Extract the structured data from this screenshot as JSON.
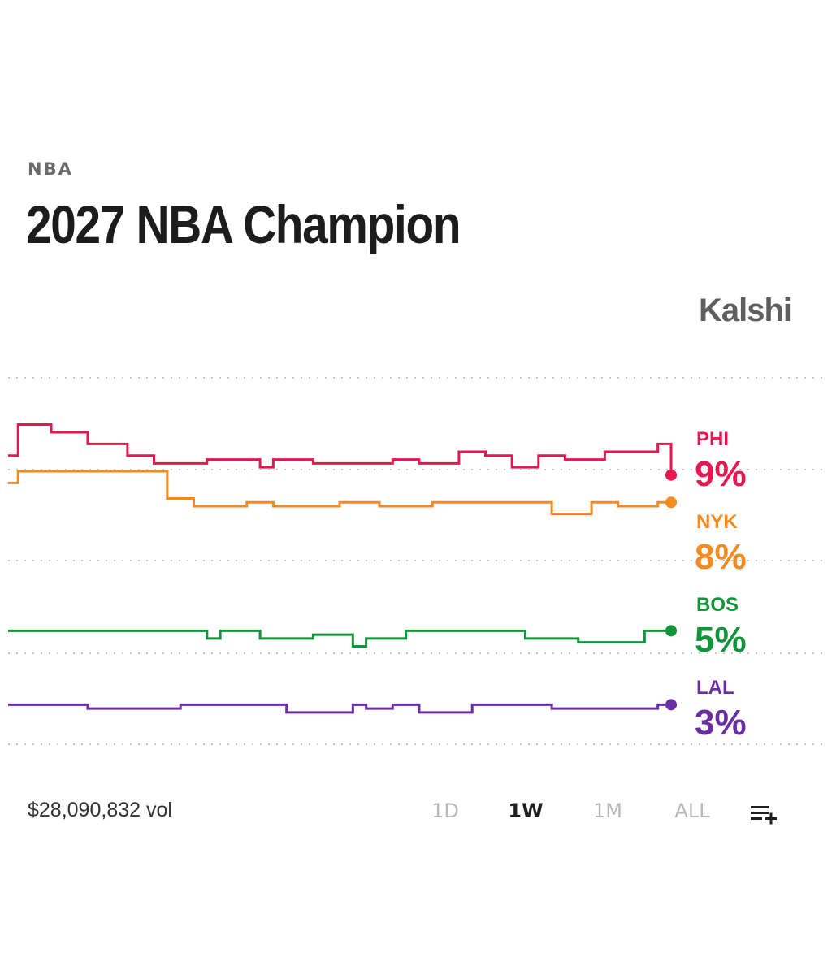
{
  "header": {
    "category": "NBA",
    "title": "2027 NBA Champion",
    "brand": "Kalshi"
  },
  "footer": {
    "volume": "$28,090,832 vol",
    "ranges": [
      {
        "label": "1D",
        "active": false
      },
      {
        "label": "1W",
        "active": true
      },
      {
        "label": "1M",
        "active": false
      },
      {
        "label": "ALL",
        "active": false
      }
    ],
    "add_icon": "add-to-list-icon"
  },
  "chart_data": {
    "type": "line",
    "step": true,
    "x": [
      0,
      0.015,
      0.03,
      0.05,
      0.065,
      0.09,
      0.12,
      0.15,
      0.18,
      0.2,
      0.22,
      0.24,
      0.26,
      0.28,
      0.3,
      0.32,
      0.34,
      0.36,
      0.38,
      0.4,
      0.42,
      0.44,
      0.46,
      0.48,
      0.5,
      0.52,
      0.54,
      0.56,
      0.58,
      0.6,
      0.62,
      0.64,
      0.66,
      0.68,
      0.7,
      0.72,
      0.74,
      0.76,
      0.78,
      0.8,
      0.82,
      0.84,
      0.86,
      0.88,
      0.9,
      0.92,
      0.94,
      0.96,
      0.98,
      0.99,
      1.0
    ],
    "ylim": [
      2,
      11.5
    ],
    "grid": true,
    "legend": "right",
    "series": [
      {
        "name": "PHI",
        "value_label": "9%",
        "color": "#e8174f",
        "values": [
          9.5,
          10.3,
          10.3,
          10.3,
          10.1,
          10.1,
          9.8,
          9.8,
          9.5,
          9.5,
          9.3,
          9.3,
          9.3,
          9.3,
          9.4,
          9.4,
          9.4,
          9.4,
          9.2,
          9.4,
          9.4,
          9.4,
          9.3,
          9.3,
          9.3,
          9.3,
          9.3,
          9.3,
          9.4,
          9.4,
          9.3,
          9.3,
          9.3,
          9.6,
          9.6,
          9.5,
          9.5,
          9.2,
          9.2,
          9.5,
          9.5,
          9.4,
          9.4,
          9.4,
          9.6,
          9.6,
          9.6,
          9.6,
          9.8,
          9.8,
          9.0
        ]
      },
      {
        "name": "NYK",
        "value_label": "8%",
        "color": "#f58a1f",
        "values": [
          8.8,
          9.1,
          9.1,
          9.1,
          9.1,
          9.1,
          9.1,
          9.1,
          9.1,
          9.1,
          9.1,
          8.4,
          8.4,
          8.2,
          8.2,
          8.2,
          8.2,
          8.3,
          8.3,
          8.2,
          8.2,
          8.2,
          8.2,
          8.2,
          8.3,
          8.3,
          8.3,
          8.2,
          8.2,
          8.2,
          8.2,
          8.3,
          8.3,
          8.3,
          8.3,
          8.3,
          8.3,
          8.3,
          8.3,
          8.3,
          8.0,
          8.0,
          8.0,
          8.3,
          8.3,
          8.2,
          8.2,
          8.2,
          8.3,
          8.3,
          8.3
        ]
      },
      {
        "name": "BOS",
        "value_label": "5%",
        "color": "#12943a",
        "values": [
          5.0,
          5.0,
          5.0,
          5.0,
          5.0,
          5.0,
          5.0,
          5.0,
          5.0,
          5.0,
          5.0,
          5.0,
          5.0,
          5.0,
          4.8,
          5.0,
          5.0,
          5.0,
          4.8,
          4.8,
          4.8,
          4.8,
          4.9,
          4.9,
          4.9,
          4.6,
          4.8,
          4.8,
          4.8,
          5.0,
          5.0,
          5.0,
          5.0,
          5.0,
          5.0,
          5.0,
          5.0,
          5.0,
          4.8,
          4.8,
          4.8,
          4.8,
          4.7,
          4.7,
          4.7,
          4.7,
          4.7,
          5.0,
          5.0,
          5.0,
          5.0
        ]
      },
      {
        "name": "LAL",
        "value_label": "3%",
        "color": "#6a2ea3",
        "values": [
          3.1,
          3.1,
          3.1,
          3.1,
          3.1,
          3.1,
          3.0,
          3.0,
          3.0,
          3.0,
          3.0,
          3.0,
          3.1,
          3.1,
          3.1,
          3.1,
          3.1,
          3.1,
          3.1,
          3.1,
          2.9,
          2.9,
          2.9,
          2.9,
          2.9,
          3.1,
          3.0,
          3.0,
          3.1,
          3.1,
          2.9,
          2.9,
          2.9,
          2.9,
          3.1,
          3.1,
          3.1,
          3.1,
          3.1,
          3.1,
          3.0,
          3.0,
          3.0,
          3.0,
          3.0,
          3.0,
          3.0,
          3.0,
          3.1,
          3.1,
          3.1
        ]
      }
    ]
  }
}
